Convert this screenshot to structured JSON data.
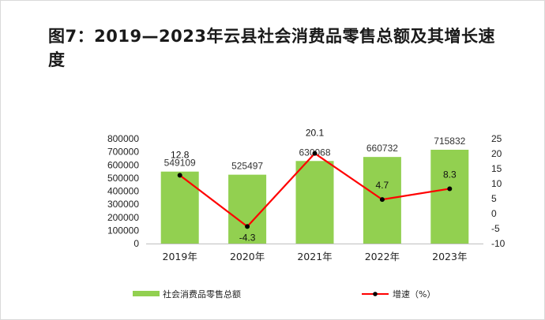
{
  "title": "图7：2019—2023年云县社会消费品零售总额及其增长速度",
  "chart_data": {
    "type": "bar",
    "title": "图7：2019—2023年云县社会消费品零售总额及其增长速度",
    "categories": [
      "2019年",
      "2020年",
      "2021年",
      "2022年",
      "2023年"
    ],
    "series": [
      {
        "name": "社会消费品零售总额",
        "type": "bar",
        "axis": "left",
        "values": [
          549109,
          525497,
          630068,
          660732,
          715832
        ],
        "color": "#92d050"
      },
      {
        "name": "增速（%）",
        "type": "line",
        "axis": "right",
        "values": [
          12.8,
          -4.3,
          20.1,
          4.7,
          8.3
        ],
        "color": "#ff0000",
        "marker_color": "#000000"
      }
    ],
    "y_left": {
      "lim": [
        0,
        800000
      ],
      "ticks": [
        0,
        100000,
        200000,
        300000,
        400000,
        500000,
        600000,
        700000,
        800000
      ]
    },
    "y_right": {
      "lim": [
        -10,
        25
      ],
      "ticks": [
        -10,
        -5,
        0,
        5,
        10,
        15,
        20,
        25
      ]
    },
    "grid": false,
    "legend": "bottom"
  }
}
